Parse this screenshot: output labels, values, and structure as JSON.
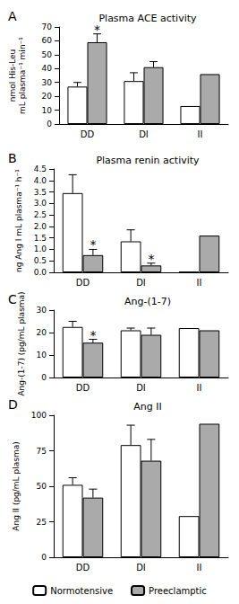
{
  "chart_data": [
    {
      "type": "bar",
      "panel": "A",
      "title": "Plasma ACE activity",
      "y_label": "nmol His-Leu\nmL plasma⁻¹ min⁻¹",
      "categories": [
        "DD",
        "DI",
        "II"
      ],
      "ylim": [
        0,
        70
      ],
      "yticks": [
        0,
        10,
        20,
        30,
        40,
        50,
        60,
        70
      ],
      "grid": false,
      "series": [
        {
          "name": "Normotensive",
          "color": "#ffffff",
          "values": [
            27,
            31,
            13
          ],
          "errors": [
            3,
            6,
            null
          ],
          "annotations": [
            null,
            null,
            null
          ]
        },
        {
          "name": "Preeclamptic",
          "color": "#aaaaaa",
          "values": [
            59,
            41,
            36
          ],
          "errors": [
            6,
            4,
            null
          ],
          "annotations": [
            "*",
            null,
            null
          ]
        }
      ]
    },
    {
      "type": "bar",
      "panel": "B",
      "title": "Plasma renin activity",
      "y_label": "ng Ang I mL plasma⁻¹ h⁻¹",
      "categories": [
        "DD",
        "DI",
        "II"
      ],
      "ylim": [
        0,
        4.5
      ],
      "yticks": [
        {
          "value": 0,
          "label": "0.0"
        },
        {
          "value": 0.5,
          "label": "0.5"
        },
        {
          "value": 1,
          "label": "1.0"
        },
        {
          "value": 1.5,
          "label": "1.5"
        },
        {
          "value": 2,
          "label": "2.0"
        },
        {
          "value": 2.5,
          "label": "2.5"
        },
        {
          "value": 3,
          "label": "3.0"
        },
        {
          "value": 3.5,
          "label": "3.5"
        },
        {
          "value": 4,
          "label": "4.0"
        },
        {
          "value": 4.5,
          "label": "4.5"
        }
      ],
      "grid": false,
      "series": [
        {
          "name": "Normotensive",
          "color": "#ffffff",
          "values": [
            3.45,
            1.35,
            0.02
          ],
          "errors": [
            0.8,
            0.5,
            null
          ],
          "annotations": [
            null,
            null,
            null
          ]
        },
        {
          "name": "Preeclamptic",
          "color": "#aaaaaa",
          "values": [
            0.75,
            0.3,
            1.6
          ],
          "errors": [
            0.25,
            0.1,
            null
          ],
          "annotations": [
            "*",
            "*",
            null
          ]
        }
      ]
    },
    {
      "type": "bar",
      "panel": "C",
      "title": "Ang-(1-7)",
      "y_label": "Ang-(1-7) (pg/mL plasma)",
      "categories": [
        "DD",
        "DI",
        "II"
      ],
      "ylim": [
        0,
        30
      ],
      "yticks": [
        0,
        10,
        20,
        30
      ],
      "grid": false,
      "series": [
        {
          "name": "Normotensive",
          "color": "#ffffff",
          "values": [
            22.5,
            21,
            22
          ],
          "errors": [
            2.5,
            1,
            null
          ],
          "annotations": [
            null,
            null,
            null
          ]
        },
        {
          "name": "Preeclamptic",
          "color": "#aaaaaa",
          "values": [
            15.5,
            19,
            21
          ],
          "errors": [
            1.5,
            3,
            null
          ],
          "annotations": [
            "*",
            null,
            null
          ]
        }
      ]
    },
    {
      "type": "bar",
      "panel": "D",
      "title": "Ang II",
      "y_label": "Ang II (pg/mL plasma)",
      "categories": [
        "DD",
        "DI",
        "II"
      ],
      "ylim": [
        0,
        100
      ],
      "yticks": [
        0,
        25,
        50,
        75,
        100
      ],
      "grid": false,
      "legend": "bottom",
      "series": [
        {
          "name": "Normotensive",
          "color": "#ffffff",
          "values": [
            51,
            79,
            29
          ],
          "errors": [
            5,
            14,
            null
          ],
          "annotations": [
            null,
            null,
            null
          ]
        },
        {
          "name": "Preeclamptic",
          "color": "#aaaaaa",
          "values": [
            42,
            68,
            94
          ],
          "errors": [
            6,
            15,
            null
          ],
          "annotations": [
            null,
            null,
            null
          ]
        }
      ]
    }
  ]
}
